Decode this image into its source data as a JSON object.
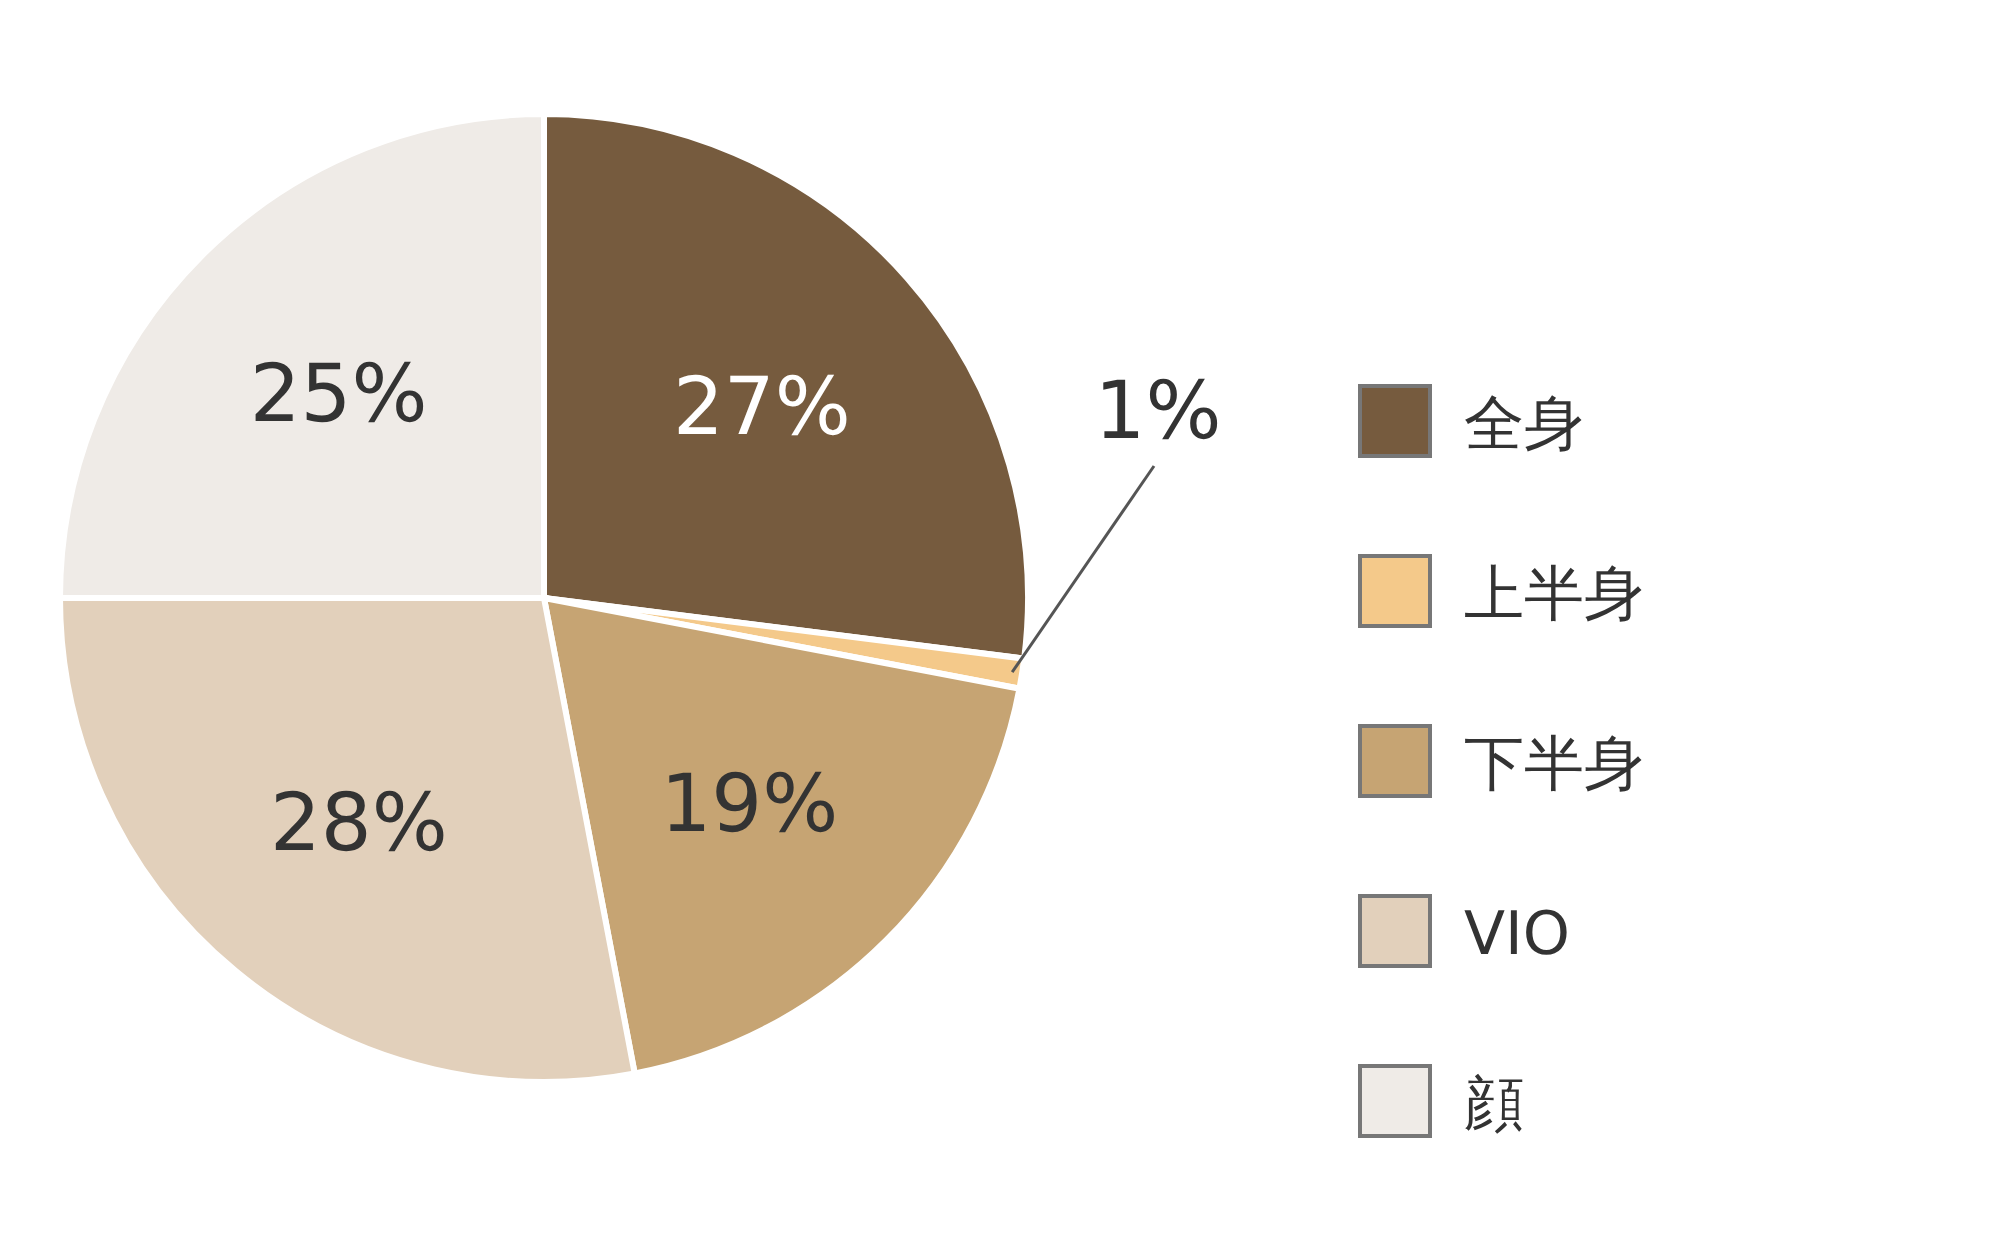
{
  "chart_data": {
    "type": "pie",
    "categories": [
      "全身",
      "上半身",
      "下半身",
      "VIO",
      "顔"
    ],
    "values": [
      27,
      1,
      19,
      28,
      25
    ],
    "colors": [
      "#765b3e",
      "#f4c98a",
      "#c6a473",
      "#e2d0bb",
      "#efebe7"
    ],
    "value_labels": [
      "27%",
      "1%",
      "19%",
      "28%",
      "25%"
    ],
    "legend": "right"
  }
}
